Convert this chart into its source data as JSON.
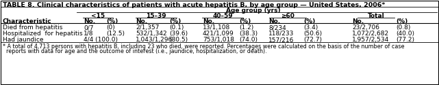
{
  "title": "TABLE 8. Clinical characteristics of patients with acute hepatitis B, by age group — United States, 2006*",
  "age_group_header": "Age group (yrs)",
  "col_groups": [
    "<15",
    "15–39",
    "40–59",
    "≥60",
    "Total"
  ],
  "row_header": "Characteristic",
  "rows": [
    {
      "label": "Died from hepatitis",
      "c1_no": "0/7",
      "c1_pct": "(0)",
      "c2_no": "2/1,357",
      "c2_pct": "(0.1)",
      "c3_no": "13/1,108",
      "c3_pct": "(1.2)",
      "c4_no": "8/234",
      "c4_pct": "(3.4)",
      "c5_no": "23/2,706",
      "c5_pct": "(0.8)"
    },
    {
      "label": "Hospitalized  for hepatitis",
      "c1_no": "1/8",
      "c1_pct": "(12.5)",
      "c2_no": "532/1,342",
      "c2_pct": "(39.6)",
      "c3_no": "421/1,099",
      "c3_pct": "(38.3)",
      "c4_no": "118/233",
      "c4_pct": "(50.6)",
      "c5_no": "1,072/2,682",
      "c5_pct": "(40.0)"
    },
    {
      "label": "Had jaundice",
      "c1_no": "4/4 (100.0)",
      "c1_pct": "",
      "c2_no": "1,043/1,296",
      "c2_pct": "(80.5)",
      "c3_no": "753/1,018",
      "c3_pct": "(74.0)",
      "c4_no": "157/216",
      "c4_pct": "(72.7)",
      "c5_no": "1,957/2,534",
      "c5_pct": "(77.2)"
    }
  ],
  "footnote_line1": "* A total of 4,713 persons with hepatitis B, including 23 who died, were reported. Percentages were calculated on the basis of the number of case",
  "footnote_line2": "  reports with data for age and the outcome of interest (i.e., jaundice, hospitalization, or death).",
  "bg_color": "#ffffff",
  "border_color": "#000000",
  "font_size": 6.5,
  "title_font_size": 6.8,
  "footnote_font_size": 5.8
}
